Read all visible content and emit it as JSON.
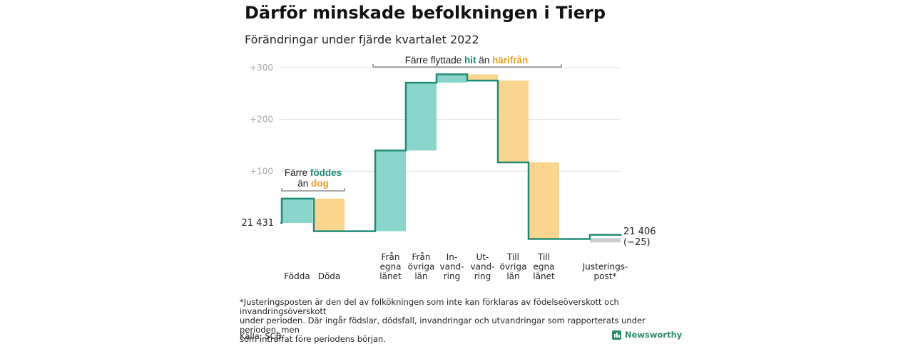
{
  "title": "Därför minskade befolkningen i Tierp",
  "subtitle": "Förändringar under fjärde kvartalet 2022",
  "chart_data": {
    "type": "waterfall",
    "ylim": [
      -25,
      300
    ],
    "yticks": [
      100,
      200,
      300
    ],
    "ytick_labels": [
      "+100",
      "+200",
      "+300"
    ],
    "grid": true,
    "start_value": 21431,
    "start_label": "21 431",
    "end_value": 21406,
    "end_label_lines": [
      "21 406",
      "(−25)"
    ],
    "steps": [
      {
        "label_lines": [
          "Födda"
        ],
        "delta": 47,
        "direction": "in"
      },
      {
        "label_lines": [
          "Döda"
        ],
        "delta": -63,
        "direction": "out"
      },
      {
        "label_lines": [
          "Från",
          "egna",
          "länet"
        ],
        "delta": 156,
        "direction": "in"
      },
      {
        "label_lines": [
          "Från",
          "övriga",
          "län"
        ],
        "delta": 131,
        "direction": "in"
      },
      {
        "label_lines": [
          "In-",
          "vand-",
          "ring"
        ],
        "delta": 16,
        "direction": "in"
      },
      {
        "label_lines": [
          "Ut-",
          "vand-",
          "ring"
        ],
        "delta": -12,
        "direction": "out"
      },
      {
        "label_lines": [
          "Till",
          "övriga",
          "län"
        ],
        "delta": -158,
        "direction": "out"
      },
      {
        "label_lines": [
          "Till",
          "egna",
          "länet"
        ],
        "delta": -148,
        "direction": "out"
      },
      {
        "label_lines": [
          "Justerings-",
          "post*"
        ],
        "delta": 8,
        "direction": "adjust"
      }
    ],
    "annotations": [
      {
        "text_parts": [
          "Färre ",
          "föddes"
        ],
        "line2_parts": [
          "än ",
          "dog"
        ]
      },
      {
        "text_parts": [
          "Färre flyttade ",
          "hit",
          " än ",
          "härifrån"
        ]
      }
    ],
    "colors": {
      "in_fill": "#8ad5cb",
      "out_fill": "#fbd48e",
      "adjust_fill": "#c9ccce",
      "line": "#1f8c76",
      "in_text": "#1f8c76",
      "out_text": "#f0a020",
      "grid": "#dddddd",
      "tick_text": "#aaaaaa"
    }
  },
  "footnote_lines": [
    "*Justeringsposten är den del av folkökningen som inte kan förklaras av födelseöverskott och invandringsöverskott",
    "under perioden. Där ingår födslar, dödsfall, invandringar och utvandringar som rapporterats under perioden, men",
    "som inträffat före periodens början."
  ],
  "source": "Källa: SCB",
  "brand": "Newsworthy"
}
